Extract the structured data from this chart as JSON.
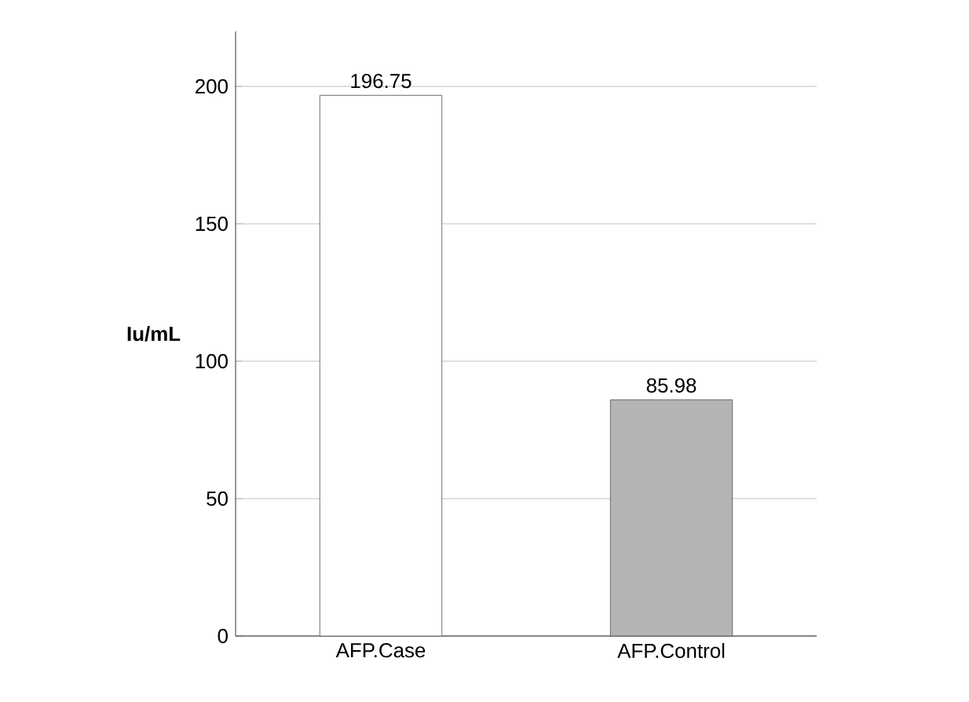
{
  "chart_data": {
    "type": "bar",
    "ylabel": "Iu/mL",
    "categories": [
      "AFP.Case",
      "AFP.Control"
    ],
    "values": [
      196.75,
      85.98
    ],
    "colors": [
      "#ffffff",
      "#b4b4b4"
    ],
    "value_labels": [
      "196.75",
      "85.98"
    ],
    "ylim": [
      0,
      220
    ],
    "yticks": [
      0,
      50,
      100,
      150,
      200
    ],
    "grid": "y"
  }
}
